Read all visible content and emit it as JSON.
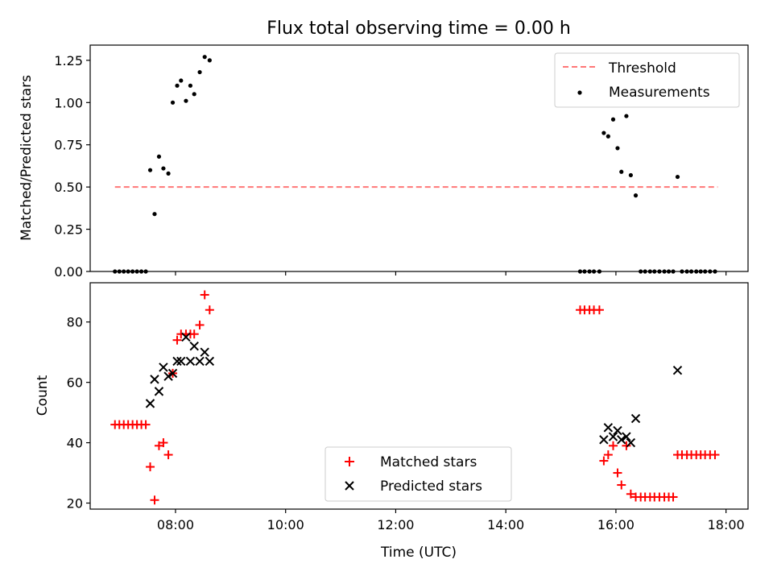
{
  "chart_data": [
    {
      "type": "scatter",
      "title": "Flux total observing time = 0.00 h",
      "xlabel": "",
      "ylabel": "Matched/Predicted stars",
      "xlim": [
        6.45,
        18.4
      ],
      "ylim": [
        0.0,
        1.34
      ],
      "yticks": [
        0.0,
        0.25,
        0.5,
        0.75,
        1.0,
        1.25
      ],
      "ytick_labels": [
        "0.00",
        "0.25",
        "0.50",
        "0.75",
        "1.00",
        "1.25"
      ],
      "xticks": [
        8,
        10,
        12,
        14,
        16,
        18
      ],
      "xtick_labels": [],
      "grid": false,
      "legend": "top-right",
      "threshold": {
        "name": "Threshold",
        "value": 0.5,
        "x": [
          6.9,
          17.85
        ],
        "color": "#ff7777",
        "style": "dashed"
      },
      "series": [
        {
          "name": "Measurements",
          "marker": "dot",
          "color": "#000000",
          "x": [
            6.9,
            6.98,
            7.06,
            7.14,
            7.22,
            7.3,
            7.38,
            7.46,
            7.54,
            7.62,
            7.7,
            7.78,
            7.87,
            7.95,
            8.03,
            8.1,
            8.19,
            8.27,
            8.34,
            8.44,
            8.53,
            8.62,
            15.35,
            15.43,
            15.52,
            15.6,
            15.7,
            15.78,
            15.86,
            15.95,
            16.03,
            16.1,
            16.19,
            16.27,
            16.36,
            16.45,
            16.53,
            16.62,
            16.7,
            16.79,
            16.88,
            16.96,
            17.04,
            17.12,
            17.2,
            17.29,
            17.37,
            17.46,
            17.54,
            17.62,
            17.71,
            17.8
          ],
          "y": [
            0,
            0,
            0,
            0,
            0,
            0,
            0,
            0,
            0.6,
            0.34,
            0.68,
            0.61,
            0.58,
            1.0,
            1.1,
            1.13,
            1.01,
            1.1,
            1.05,
            1.18,
            1.27,
            1.25,
            0,
            0,
            0,
            0,
            0,
            0.82,
            0.8,
            0.9,
            0.73,
            0.59,
            0.92,
            0.57,
            0.45,
            0,
            0,
            0,
            0,
            0,
            0,
            0,
            0,
            0.56,
            0,
            0,
            0,
            0,
            0,
            0,
            0,
            0
          ]
        }
      ]
    },
    {
      "type": "scatter",
      "title": "",
      "xlabel": "Time (UTC)",
      "ylabel": "Count",
      "xlim": [
        6.45,
        18.4
      ],
      "ylim": [
        18,
        93
      ],
      "yticks": [
        20,
        40,
        60,
        80
      ],
      "ytick_labels": [
        "20",
        "40",
        "60",
        "80"
      ],
      "xticks": [
        8,
        10,
        12,
        14,
        16,
        18
      ],
      "xtick_labels": [
        "08:00",
        "10:00",
        "12:00",
        "14:00",
        "16:00",
        "18:00"
      ],
      "grid": false,
      "legend": "lower-center",
      "series": [
        {
          "name": "Matched stars",
          "marker": "plus",
          "color": "#ff0000",
          "x": [
            6.9,
            6.98,
            7.06,
            7.14,
            7.22,
            7.3,
            7.38,
            7.46,
            7.54,
            7.62,
            7.7,
            7.78,
            7.87,
            7.95,
            8.03,
            8.1,
            8.19,
            8.27,
            8.34,
            8.44,
            8.53,
            8.62,
            15.35,
            15.43,
            15.52,
            15.6,
            15.7,
            15.78,
            15.86,
            15.95,
            16.03,
            16.1,
            16.19,
            16.27,
            16.36,
            16.45,
            16.53,
            16.62,
            16.7,
            16.79,
            16.88,
            16.96,
            17.04,
            17.12,
            17.2,
            17.29,
            17.37,
            17.46,
            17.54,
            17.62,
            17.71,
            17.8
          ],
          "y": [
            46,
            46,
            46,
            46,
            46,
            46,
            46,
            46,
            32,
            21,
            39,
            40,
            36,
            63,
            74,
            76,
            76,
            76,
            76,
            79,
            89,
            84,
            84,
            84,
            84,
            84,
            84,
            34,
            36,
            39,
            30,
            26,
            39,
            23,
            22,
            22,
            22,
            22,
            22,
            22,
            22,
            22,
            22,
            36,
            36,
            36,
            36,
            36,
            36,
            36,
            36,
            36
          ]
        },
        {
          "name": "Predicted stars",
          "marker": "x",
          "color": "#000000",
          "x": [
            7.54,
            7.62,
            7.7,
            7.78,
            7.87,
            7.95,
            8.03,
            8.1,
            8.19,
            8.27,
            8.34,
            8.44,
            8.53,
            8.62,
            15.78,
            15.86,
            15.95,
            16.03,
            16.1,
            16.19,
            16.27,
            16.36,
            17.12
          ],
          "y": [
            53,
            61,
            57,
            65,
            62,
            63,
            67,
            67,
            75,
            67,
            72,
            67,
            70,
            67,
            41,
            45,
            42,
            44,
            41,
            42,
            40,
            48,
            64
          ]
        }
      ]
    }
  ]
}
